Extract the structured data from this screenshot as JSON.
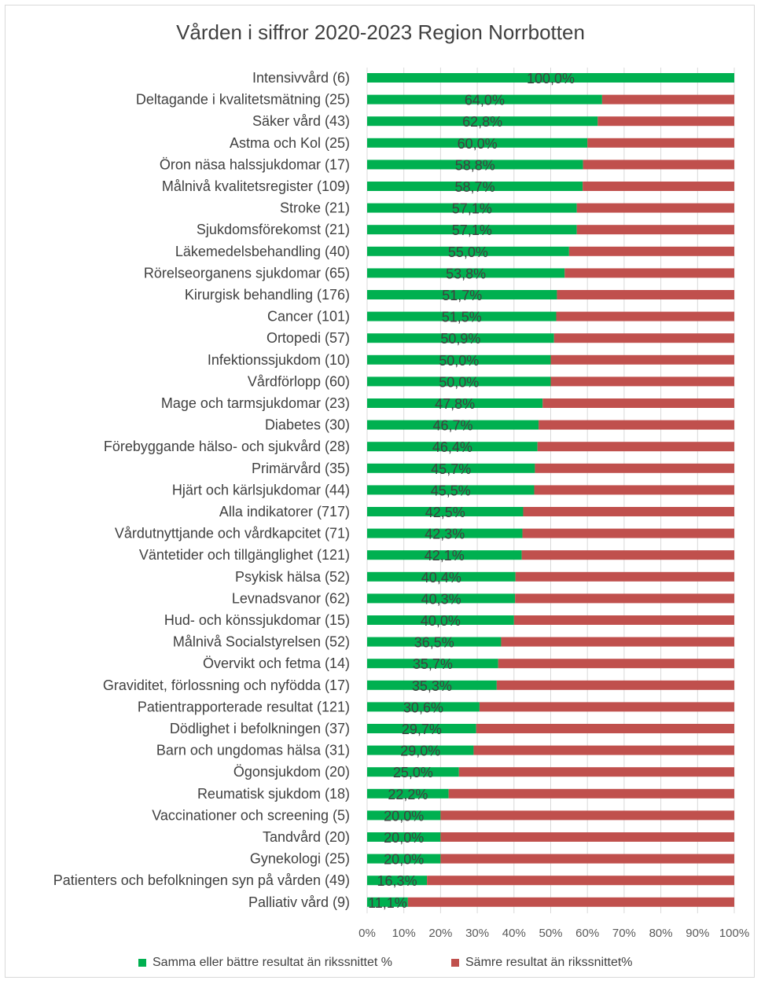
{
  "chart_data": {
    "type": "bar",
    "orientation": "horizontal",
    "stacked": "percent",
    "title": "Vården i siffror 2020-2023 Region Norrbotten",
    "categories": [
      "Intensivvård (6)",
      "Deltagande i kvalitetsmätning (25)",
      "Säker vård (43)",
      "Astma och Kol (25)",
      "Öron näsa halssjukdomar (17)",
      "Målnivå kvalitetsregister (109)",
      "Stroke (21)",
      "Sjukdomsförekomst (21)",
      "Läkemedelsbehandling (40)",
      "Rörelseorganens sjukdomar (65)",
      "Kirurgisk behandling (176)",
      "Cancer (101)",
      "Ortopedi (57)",
      "Infektionssjukdom (10)",
      "Vårdförlopp (60)",
      "Mage och tarmsjukdomar (23)",
      "Diabetes (30)",
      "Förebyggande hälso- och sjukvård (28)",
      "Primärvård (35)",
      "Hjärt och kärlsjukdomar (44)",
      "Alla indikatorer (717)",
      "Vårdutnyttjande och vårdkapcitet (71)",
      "Väntetider och tillgänglighet (121)",
      "Psykisk hälsa (52)",
      "Levnadsvanor (62)",
      "Hud- och könssjukdomar (15)",
      "Målnivå Socialstyrelsen (52)",
      "Övervikt och fetma (14)",
      "Graviditet, förlossning och nyfödda (17)",
      "Patientrapporterade resultat (121)",
      "Dödlighet i befolkningen (37)",
      "Barn och ungdomas hälsa (31)",
      "Ögonsjukdom (20)",
      "Reumatisk sjukdom (18)",
      "Vaccinationer och screening (5)",
      "Tandvård (20)",
      "Gynekologi (25)",
      "Patienters och befolkningen syn på vården (49)",
      "Palliativ vård (9)"
    ],
    "series": [
      {
        "name": "Samma eller bättre resultat än rikssnittet %",
        "color": "#00b050",
        "values": [
          100.0,
          64.0,
          62.8,
          60.0,
          58.8,
          58.7,
          57.1,
          57.1,
          55.0,
          53.8,
          51.7,
          51.5,
          50.9,
          50.0,
          50.0,
          47.8,
          46.7,
          46.4,
          45.7,
          45.5,
          42.5,
          42.3,
          42.1,
          40.4,
          40.3,
          40.0,
          36.5,
          35.7,
          35.3,
          30.6,
          29.7,
          29.0,
          25.0,
          22.2,
          20.0,
          20.0,
          20.0,
          16.3,
          11.1
        ],
        "labels": [
          "100,0%",
          "64,0%",
          "62,8%",
          "60,0%",
          "58,8%",
          "58,7%",
          "57,1%",
          "57,1%",
          "55,0%",
          "53,8%",
          "51,7%",
          "51,5%",
          "50,9%",
          "50,0%",
          "50,0%",
          "47,8%",
          "46,7%",
          "46,4%",
          "45,7%",
          "45,5%",
          "42,5%",
          "42,3%",
          "42,1%",
          "40,4%",
          "40,3%",
          "40,0%",
          "36,5%",
          "35,7%",
          "35,3%",
          "30,6%",
          "29,7%",
          "29,0%",
          "25,0%",
          "22,2%",
          "20,0%",
          "20,0%",
          "20,0%",
          "16,3%",
          "11,1%"
        ]
      },
      {
        "name": "Sämre resultat än rikssnittet%",
        "color": "#c0504d",
        "values": [
          0.0,
          36.0,
          37.2,
          40.0,
          41.2,
          41.3,
          42.9,
          42.9,
          45.0,
          46.2,
          48.3,
          48.5,
          49.1,
          50.0,
          50.0,
          52.2,
          53.3,
          53.6,
          54.3,
          54.5,
          57.5,
          57.7,
          57.9,
          59.6,
          59.7,
          60.0,
          63.5,
          64.3,
          64.7,
          69.4,
          70.3,
          71.0,
          75.0,
          77.8,
          80.0,
          80.0,
          80.0,
          83.7,
          88.9
        ]
      }
    ],
    "x_ticks": [
      "0%",
      "10%",
      "20%",
      "30%",
      "40%",
      "50%",
      "60%",
      "70%",
      "80%",
      "90%",
      "100%"
    ],
    "xlim": [
      0,
      100
    ],
    "grid": true,
    "legend_position": "bottom"
  }
}
